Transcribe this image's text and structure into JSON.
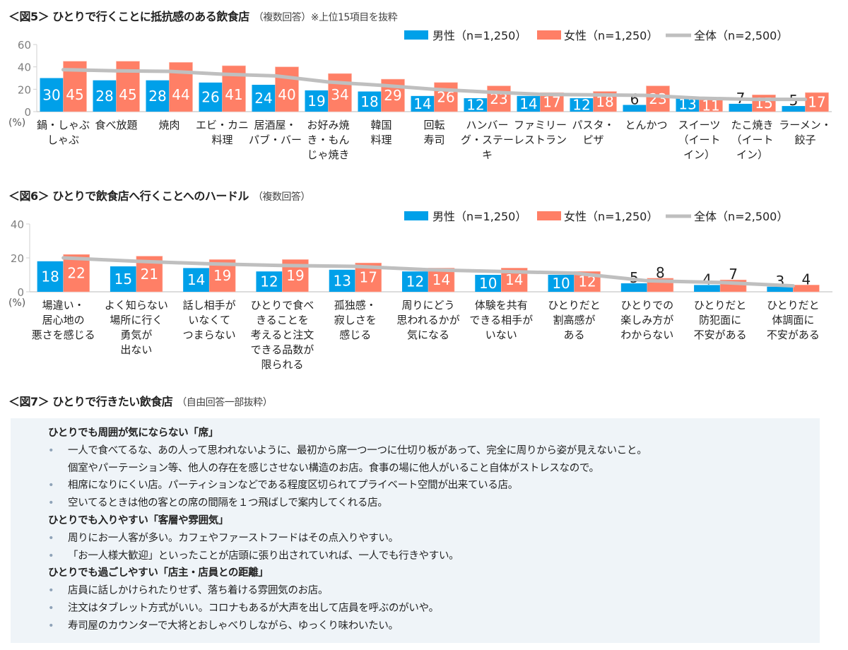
{
  "fig5": {
    "title": "＜図5＞ ひとりで行くことに抵抗感のある飲食店",
    "note": "（複数回答）※上位15項目を抜粋"
  },
  "fig6": {
    "title": "＜図6＞ ひとりで飲食店へ行くことへのハードル",
    "note": "（複数回答）"
  },
  "fig7": {
    "title": "＜図7＞ ひとりで行きたい飲食店",
    "note": "（自由回答一部抜粋）",
    "sections": [
      {
        "heading": "ひとりでも周囲が気にならない「席」",
        "items": [
          [
            "一人で食べてるな、あの人って思われないように、最初から席一つ一つに仕切り板があって、完全に周りから姿が見えないこと。",
            "個室やパーテーション等、他人の存在を感じさせない構造のお店。食事の場に他人がいること自体がストレスなので。"
          ],
          [
            "相席になりにくい店。パーティションなどである程度区切られてプライベート空間が出来ている店。"
          ],
          [
            "空いてるときは他の客との席の間隔を１つ飛ばしで案内してくれる店。"
          ]
        ]
      },
      {
        "heading": "ひとりでも入りやすい「客層や雰囲気」",
        "items": [
          [
            "周りにお一人客が多い。カフェやファーストフードはその点入りやすい。"
          ],
          [
            "「お一人様大歓迎」といったことが店頭に張り出されていれば、一人でも行きやすい。"
          ]
        ]
      },
      {
        "heading": "ひとりでも過ごしやすい「店主・店員との距離」",
        "items": [
          [
            "店員に話しかけられたりせず、落ち着ける雰囲気のお店。"
          ],
          [
            "注文はタブレット方式がいい。コロナもあるが大声を出して店員を呼ぶのがいや。"
          ],
          [
            "寿司屋のカウンターで大将とおしゃべりしながら、ゆっくり味わいたい。"
          ]
        ]
      }
    ],
    "bullet": "•"
  },
  "colors": {
    "male": "#00a0e9",
    "female": "#ff7f66",
    "overall": "#bfbfbf"
  },
  "chart_data": [
    {
      "type": "bar",
      "unit_label": "(%)",
      "ylim": [
        0,
        60
      ],
      "yticks": [
        0,
        20,
        40,
        60
      ],
      "grid": false,
      "legend": "top-right",
      "categories": [
        [
          "鍋・しゃぶ",
          "しゃぶ"
        ],
        [
          "食べ放題"
        ],
        [
          "焼肉"
        ],
        [
          "エビ・カニ",
          "料理"
        ],
        [
          "居酒屋・",
          "パブ・バー"
        ],
        [
          "お好み焼",
          "き・もん",
          "じゃ焼き"
        ],
        [
          "韓国",
          "料理"
        ],
        [
          "回転",
          "寿司"
        ],
        [
          "ハンバー",
          "グ・ステー",
          "キ"
        ],
        [
          "ファミリー",
          "レストラン"
        ],
        [
          "パスタ・",
          "ピザ"
        ],
        [
          "とんかつ"
        ],
        [
          "スイーツ",
          "（イート",
          "イン）"
        ],
        [
          "たこ焼き",
          "（イート",
          "イン）"
        ],
        [
          "ラーメン・",
          "餃子"
        ]
      ],
      "series": [
        {
          "name": "男性（n=1,250）",
          "kind": "bar",
          "values": [
            30,
            28,
            28,
            26,
            24,
            19,
            18,
            14,
            12,
            14,
            12,
            6,
            13,
            7,
            5
          ]
        },
        {
          "name": "女性（n=1,250）",
          "kind": "bar",
          "values": [
            45,
            45,
            44,
            41,
            40,
            34,
            29,
            26,
            23,
            17,
            18,
            23,
            11,
            15,
            17
          ]
        },
        {
          "name": "全体（n=2,500）",
          "kind": "line",
          "values": [
            37.5,
            36.5,
            36,
            33.5,
            32,
            26.5,
            23.5,
            20,
            17.5,
            15.5,
            15,
            14.5,
            12,
            11,
            11
          ]
        }
      ]
    },
    {
      "type": "bar",
      "unit_label": "(%)",
      "ylim": [
        0,
        40
      ],
      "yticks": [
        0,
        20,
        40
      ],
      "grid": false,
      "legend": "top-right",
      "categories": [
        [
          "場違い・",
          "居心地の",
          "悪さを感じる"
        ],
        [
          "よく知らない",
          "場所に行く",
          "勇気が",
          "出ない"
        ],
        [
          "話し相手が",
          "いなくて",
          "つまらない"
        ],
        [
          "ひとりで食べ",
          "きることを",
          "考えると注文",
          "できる品数が",
          "限られる"
        ],
        [
          "孤独感・",
          "寂しさを",
          "感じる"
        ],
        [
          "周りにどう",
          "思われるかが",
          "気になる"
        ],
        [
          "体験を共有",
          "できる相手が",
          "いない"
        ],
        [
          "ひとりだと",
          "割高感が",
          "ある"
        ],
        [
          "ひとりでの",
          "楽しみ方が",
          "わからない"
        ],
        [
          "ひとりだと",
          "防犯面に",
          "不安がある"
        ],
        [
          "ひとりだと",
          "体調面に",
          "不安がある"
        ]
      ],
      "series": [
        {
          "name": "男性（n=1,250）",
          "kind": "bar",
          "values": [
            18,
            15,
            14,
            12,
            13,
            12,
            10,
            10,
            5,
            4,
            3
          ]
        },
        {
          "name": "女性（n=1,250）",
          "kind": "bar",
          "values": [
            22,
            21,
            19,
            19,
            17,
            14,
            14,
            12,
            8,
            7,
            4
          ]
        },
        {
          "name": "全体（n=2,500）",
          "kind": "line",
          "values": [
            20,
            18,
            16.5,
            15.5,
            15,
            13,
            12,
            11,
            6.5,
            5.5,
            3.5
          ]
        }
      ]
    }
  ]
}
